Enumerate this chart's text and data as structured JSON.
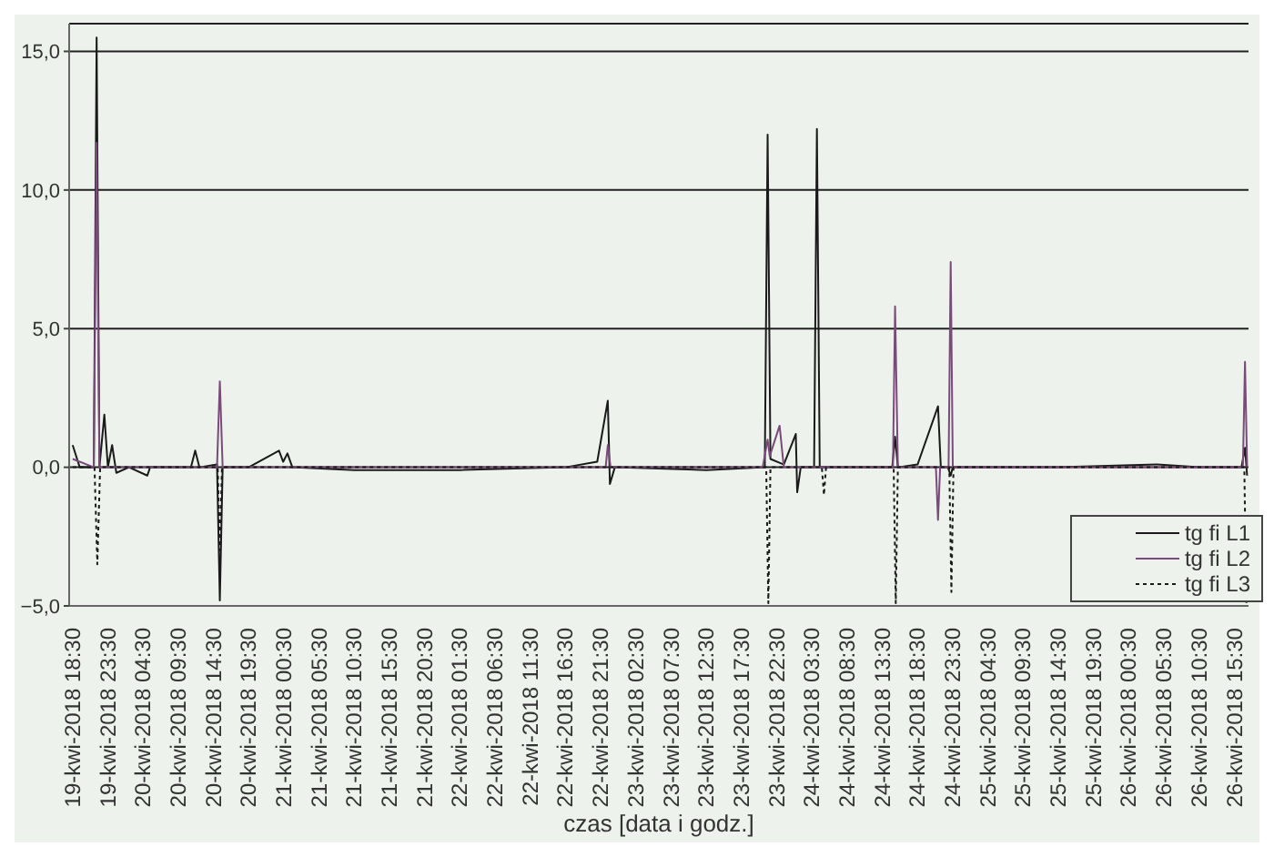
{
  "chart_data": {
    "type": "line",
    "xlabel": "czas [data i godz.]",
    "xlim": [
      "2018-04-19T18:00",
      "2018-04-26T17:30"
    ],
    "xticks": [
      {
        "value": "2018-04-19T18:30",
        "label": "19-kwi-2018 18:30"
      },
      {
        "value": "2018-04-19T23:30",
        "label": "19-kwi-2018 23:30"
      },
      {
        "value": "2018-04-20T04:30",
        "label": "20-kwi-2018 04:30"
      },
      {
        "value": "2018-04-20T09:30",
        "label": "20-kwi-2018 09:30"
      },
      {
        "value": "2018-04-20T14:30",
        "label": "20-kwi-2018 14:30"
      },
      {
        "value": "2018-04-20T19:30",
        "label": "20-kwi-2018 19:30"
      },
      {
        "value": "2018-04-21T00:30",
        "label": "21-kwi-2018 00:30"
      },
      {
        "value": "2018-04-21T05:30",
        "label": "21-kwi-2018 05:30"
      },
      {
        "value": "2018-04-21T10:30",
        "label": "21-kwi-2018 10:30"
      },
      {
        "value": "2018-04-21T15:30",
        "label": "21-kwi-2018 15:30"
      },
      {
        "value": "2018-04-21T20:30",
        "label": "21-kwi-2018 20:30"
      },
      {
        "value": "2018-04-22T01:30",
        "label": "22-kwi-2018 01:30"
      },
      {
        "value": "2018-04-22T06:30",
        "label": "22-kwi-2018 06:30"
      },
      {
        "value": "2018-04-22T11:30",
        "label": "22-kwi-2018 11:30"
      },
      {
        "value": "2018-04-22T16:30",
        "label": "22-kwi-2018 16:30"
      },
      {
        "value": "2018-04-22T21:30",
        "label": "22-kwi-2018 21:30"
      },
      {
        "value": "2018-04-23T02:30",
        "label": "23-kwi-2018 02:30"
      },
      {
        "value": "2018-04-23T07:30",
        "label": "23-kwi-2018 07:30"
      },
      {
        "value": "2018-04-23T12:30",
        "label": "23-kwi-2018 12:30"
      },
      {
        "value": "2018-04-23T17:30",
        "label": "23-kwi-2018 17:30"
      },
      {
        "value": "2018-04-23T22:30",
        "label": "23-kwi-2018 22:30"
      },
      {
        "value": "2018-04-24T03:30",
        "label": "24-kwi-2018 03:30"
      },
      {
        "value": "2018-04-24T08:30",
        "label": "24-kwi-2018 08:30"
      },
      {
        "value": "2018-04-24T13:30",
        "label": "24-kwi-2018 13:30"
      },
      {
        "value": "2018-04-24T18:30",
        "label": "24-kwi-2018 18:30"
      },
      {
        "value": "2018-04-24T23:30",
        "label": "24-kwi-2018 23:30"
      },
      {
        "value": "2018-04-25T04:30",
        "label": "25-kwi-2018 04:30"
      },
      {
        "value": "2018-04-25T09:30",
        "label": "25-kwi-2018 09:30"
      },
      {
        "value": "2018-04-25T14:30",
        "label": "25-kwi-2018 14:30"
      },
      {
        "value": "2018-04-25T19:30",
        "label": "25-kwi-2018 19:30"
      },
      {
        "value": "2018-04-26T00:30",
        "label": "26-kwi-2018 00:30"
      },
      {
        "value": "2018-04-26T05:30",
        "label": "26-kwi-2018 05:30"
      },
      {
        "value": "2018-04-26T10:30",
        "label": "26-kwi-2018 10:30"
      },
      {
        "value": "2018-04-26T15:30",
        "label": "26-kwi-2018 15:30"
      }
    ],
    "ylim": [
      -5,
      16
    ],
    "yticks": [
      {
        "value": -5,
        "label": "−5,0"
      },
      {
        "value": 0,
        "label": "0,0"
      },
      {
        "value": 5,
        "label": "5,0"
      },
      {
        "value": 10,
        "label": "10,0"
      },
      {
        "value": 15,
        "label": "15,0"
      }
    ],
    "grid": "y",
    "legend": "bottom right",
    "marker": "none",
    "series": [
      {
        "name": "tg fi L1",
        "color": "#1a1a1a",
        "line_style": "solid",
        "x": [
          "2018-04-19T18:30",
          "2018-04-19T19:30",
          "2018-04-19T21:30",
          "2018-04-19T21:54",
          "2018-04-19T22:18",
          "2018-04-19T23:00",
          "2018-04-19T23:30",
          "2018-04-20T00:06",
          "2018-04-20T00:42",
          "2018-04-20T02:30",
          "2018-04-20T05:06",
          "2018-04-20T05:30",
          "2018-04-20T11:18",
          "2018-04-20T11:54",
          "2018-04-20T12:30",
          "2018-04-20T15:00",
          "2018-04-20T15:24",
          "2018-04-20T15:48",
          "2018-04-20T19:30",
          "2018-04-20T23:48",
          "2018-04-21T00:24",
          "2018-04-21T01:00",
          "2018-04-21T01:42",
          "2018-04-21T10:30",
          "2018-04-22T01:30",
          "2018-04-22T16:30",
          "2018-04-22T21:00",
          "2018-04-22T22:30",
          "2018-04-22T22:48",
          "2018-04-22T23:30",
          "2018-04-23T12:30",
          "2018-04-23T20:48",
          "2018-04-23T21:12",
          "2018-04-23T21:36",
          "2018-04-23T23:30",
          "2018-04-24T01:12",
          "2018-04-24T01:24",
          "2018-04-24T01:54",
          "2018-04-24T03:48",
          "2018-04-24T04:12",
          "2018-04-24T04:36",
          "2018-04-24T08:30",
          "2018-04-24T14:54",
          "2018-04-24T15:18",
          "2018-04-24T15:42",
          "2018-04-24T18:30",
          "2018-04-24T21:24",
          "2018-04-24T21:48",
          "2018-04-24T22:48",
          "2018-04-24T23:12",
          "2018-04-24T23:30",
          "2018-04-25T14:30",
          "2018-04-26T04:30",
          "2018-04-26T10:30",
          "2018-04-26T16:30",
          "2018-04-26T17:00",
          "2018-04-26T17:18"
        ],
        "values": [
          0.8,
          0,
          0,
          15.5,
          0,
          1.9,
          0,
          0.8,
          -0.2,
          0,
          -0.3,
          0,
          0,
          0.6,
          0,
          0.1,
          -4.8,
          0,
          0,
          0.6,
          0.2,
          0.5,
          0,
          -0.1,
          -0.1,
          0,
          0.2,
          2.4,
          -0.6,
          0,
          -0.1,
          0,
          12,
          0.3,
          0.1,
          1.2,
          -0.9,
          0,
          0,
          12.2,
          0,
          0,
          0,
          1.1,
          0,
          0.1,
          2.2,
          0,
          0,
          -0.3,
          0,
          0,
          0.1,
          0,
          0,
          0.7,
          -0.3
        ]
      },
      {
        "name": "tg fi L2",
        "color": "#7a4a7a",
        "line_style": "solid",
        "x": [
          "2018-04-19T18:30",
          "2018-04-19T21:30",
          "2018-04-19T21:54",
          "2018-04-19T22:18",
          "2018-04-20T02:30",
          "2018-04-20T15:00",
          "2018-04-20T15:24",
          "2018-04-20T15:48",
          "2018-04-21T00:30",
          "2018-04-22T22:12",
          "2018-04-22T22:30",
          "2018-04-22T22:54",
          "2018-04-23T20:30",
          "2018-04-23T21:12",
          "2018-04-23T21:30",
          "2018-04-23T22:54",
          "2018-04-23T23:30",
          "2018-04-24T08:30",
          "2018-04-24T15:00",
          "2018-04-24T15:18",
          "2018-04-24T15:42",
          "2018-04-24T21:06",
          "2018-04-24T21:24",
          "2018-04-24T21:42",
          "2018-04-24T22:54",
          "2018-04-24T23:12",
          "2018-04-24T23:30",
          "2018-04-26T10:30",
          "2018-04-26T16:42",
          "2018-04-26T17:00",
          "2018-04-26T17:18"
        ],
        "values": [
          0.3,
          0,
          11.7,
          0,
          0,
          0,
          3.1,
          0,
          0,
          0,
          0.8,
          0,
          0,
          1,
          0.4,
          1.5,
          0,
          0,
          0,
          5.8,
          0,
          0,
          -1.9,
          0,
          0,
          7.4,
          0,
          0,
          0,
          3.8,
          0
        ]
      },
      {
        "name": "tg fi L3",
        "color": "#1a1a1a",
        "line_style": "dotted",
        "x": [
          "2018-04-19T18:30",
          "2018-04-19T21:36",
          "2018-04-19T22:00",
          "2018-04-19T22:24",
          "2018-04-20T04:30",
          "2018-04-20T15:06",
          "2018-04-20T15:24",
          "2018-04-20T15:42",
          "2018-04-21T20:30",
          "2018-04-23T21:00",
          "2018-04-23T21:18",
          "2018-04-23T21:36",
          "2018-04-24T04:54",
          "2018-04-24T05:12",
          "2018-04-24T05:30",
          "2018-04-24T15:06",
          "2018-04-24T15:24",
          "2018-04-24T15:42",
          "2018-04-24T23:00",
          "2018-04-24T23:18",
          "2018-04-24T23:36",
          "2018-04-26T00:30",
          "2018-04-26T16:54",
          "2018-04-26T17:12"
        ],
        "values": [
          0,
          0,
          -3.5,
          0,
          0,
          0,
          -3,
          0,
          0,
          0,
          -4.9,
          0,
          0,
          -1,
          0,
          0,
          -4.9,
          0,
          0,
          -4.5,
          0,
          0,
          0,
          -4.9
        ]
      }
    ]
  }
}
